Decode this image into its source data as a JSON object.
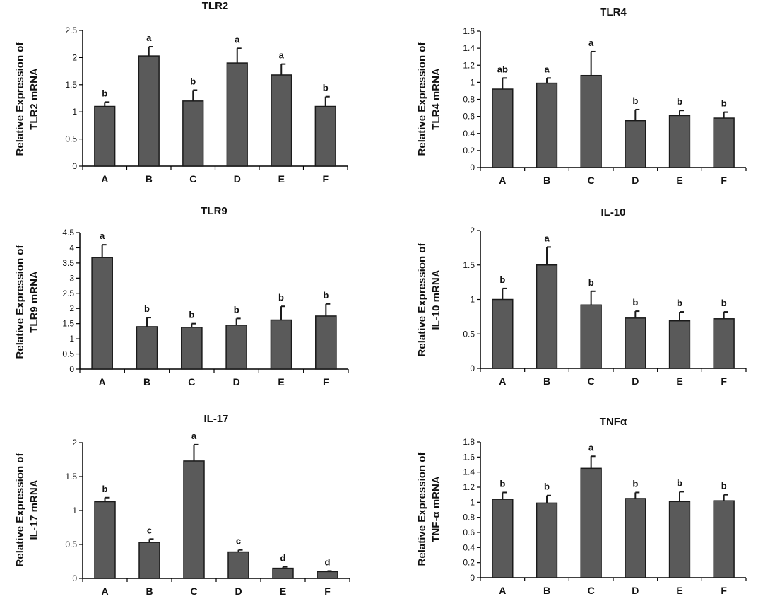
{
  "colors": {
    "bar_fill": "#5a5a5a",
    "bar_stroke": "#1a1a1a",
    "axis": "#000000"
  },
  "chart_data": [
    {
      "type": "bar",
      "title": "TLR2",
      "ylabel": [
        "Relative Expression of",
        "TLR2 mRNA"
      ],
      "categories": [
        "A",
        "B",
        "C",
        "D",
        "E",
        "F"
      ],
      "values": [
        1.1,
        2.03,
        1.2,
        1.9,
        1.68,
        1.1
      ],
      "errors": [
        0.08,
        0.17,
        0.2,
        0.27,
        0.2,
        0.18
      ],
      "letters": [
        "b",
        "a",
        "b",
        "a",
        "a",
        "b"
      ],
      "ylim": [
        0,
        2.5
      ],
      "yticks": [
        "0",
        "0.5",
        "1",
        "1.5",
        "2",
        "2.5"
      ],
      "grid": false
    },
    {
      "type": "bar",
      "title": "TLR4",
      "ylabel": [
        "Relative Expression of",
        "TLR4 mRNA"
      ],
      "categories": [
        "A",
        "B",
        "C",
        "D",
        "E",
        "F"
      ],
      "values": [
        0.92,
        0.99,
        1.08,
        0.55,
        0.61,
        0.58
      ],
      "errors": [
        0.13,
        0.06,
        0.28,
        0.13,
        0.06,
        0.07
      ],
      "letters": [
        "ab",
        "a",
        "a",
        "b",
        "b",
        "b"
      ],
      "ylim": [
        0,
        1.6
      ],
      "yticks": [
        "0",
        "0.2",
        "0.4",
        "0.6",
        "0.8",
        "1",
        "1.2",
        "1.4",
        "1.6"
      ],
      "grid": false
    },
    {
      "type": "bar",
      "title": "TLR9",
      "ylabel": [
        "Relative Expression of",
        "TLR9 mRNA"
      ],
      "categories": [
        "A",
        "B",
        "C",
        "D",
        "E",
        "F"
      ],
      "values": [
        3.68,
        1.4,
        1.38,
        1.45,
        1.62,
        1.75
      ],
      "errors": [
        0.42,
        0.3,
        0.12,
        0.22,
        0.45,
        0.4
      ],
      "letters": [
        "a",
        "b",
        "b",
        "b",
        "b",
        "b"
      ],
      "ylim": [
        0,
        4.5
      ],
      "yticks": [
        "0",
        "0.5",
        "1",
        "1.5",
        "2",
        "2.5",
        "3",
        "3.5",
        "4",
        "4.5"
      ],
      "grid": false
    },
    {
      "type": "bar",
      "title": "IL-10",
      "ylabel": [
        "Relative Expression of",
        "IL-10 mRNA"
      ],
      "categories": [
        "A",
        "B",
        "C",
        "D",
        "E",
        "F"
      ],
      "values": [
        1.0,
        1.5,
        0.92,
        0.73,
        0.69,
        0.72
      ],
      "errors": [
        0.16,
        0.26,
        0.2,
        0.1,
        0.13,
        0.1
      ],
      "letters": [
        "b",
        "a",
        "b",
        "b",
        "b",
        "b"
      ],
      "ylim": [
        0,
        2
      ],
      "yticks": [
        "0",
        "0.5",
        "1",
        "1.5",
        "2"
      ],
      "grid": false
    },
    {
      "type": "bar",
      "title": "IL-17",
      "ylabel": [
        "Relative Expression of",
        "IL-17 mRNA"
      ],
      "categories": [
        "A",
        "B",
        "C",
        "D",
        "E",
        "F"
      ],
      "values": [
        1.13,
        0.53,
        1.73,
        0.39,
        0.15,
        0.1
      ],
      "errors": [
        0.06,
        0.05,
        0.24,
        0.03,
        0.02,
        0.01
      ],
      "letters": [
        "b",
        "c",
        "a",
        "c",
        "d",
        "d"
      ],
      "ylim": [
        0,
        2
      ],
      "yticks": [
        "0",
        "0.5",
        "1",
        "1.5",
        "2"
      ],
      "grid": false
    },
    {
      "type": "bar",
      "title": "TNFα",
      "ylabel": [
        "Relative Expression of",
        "TNF-α mRNA"
      ],
      "categories": [
        "A",
        "B",
        "C",
        "D",
        "E",
        "F"
      ],
      "values": [
        1.04,
        0.99,
        1.45,
        1.05,
        1.01,
        1.02
      ],
      "errors": [
        0.09,
        0.1,
        0.16,
        0.08,
        0.13,
        0.08
      ],
      "letters": [
        "b",
        "b",
        "a",
        "b",
        "b",
        "b"
      ],
      "ylim": [
        0,
        1.8
      ],
      "yticks": [
        "0",
        "0.2",
        "0.4",
        "0.6",
        "0.8",
        "1",
        "1.2",
        "1.4",
        "1.6",
        "1.8"
      ],
      "grid": false
    }
  ]
}
